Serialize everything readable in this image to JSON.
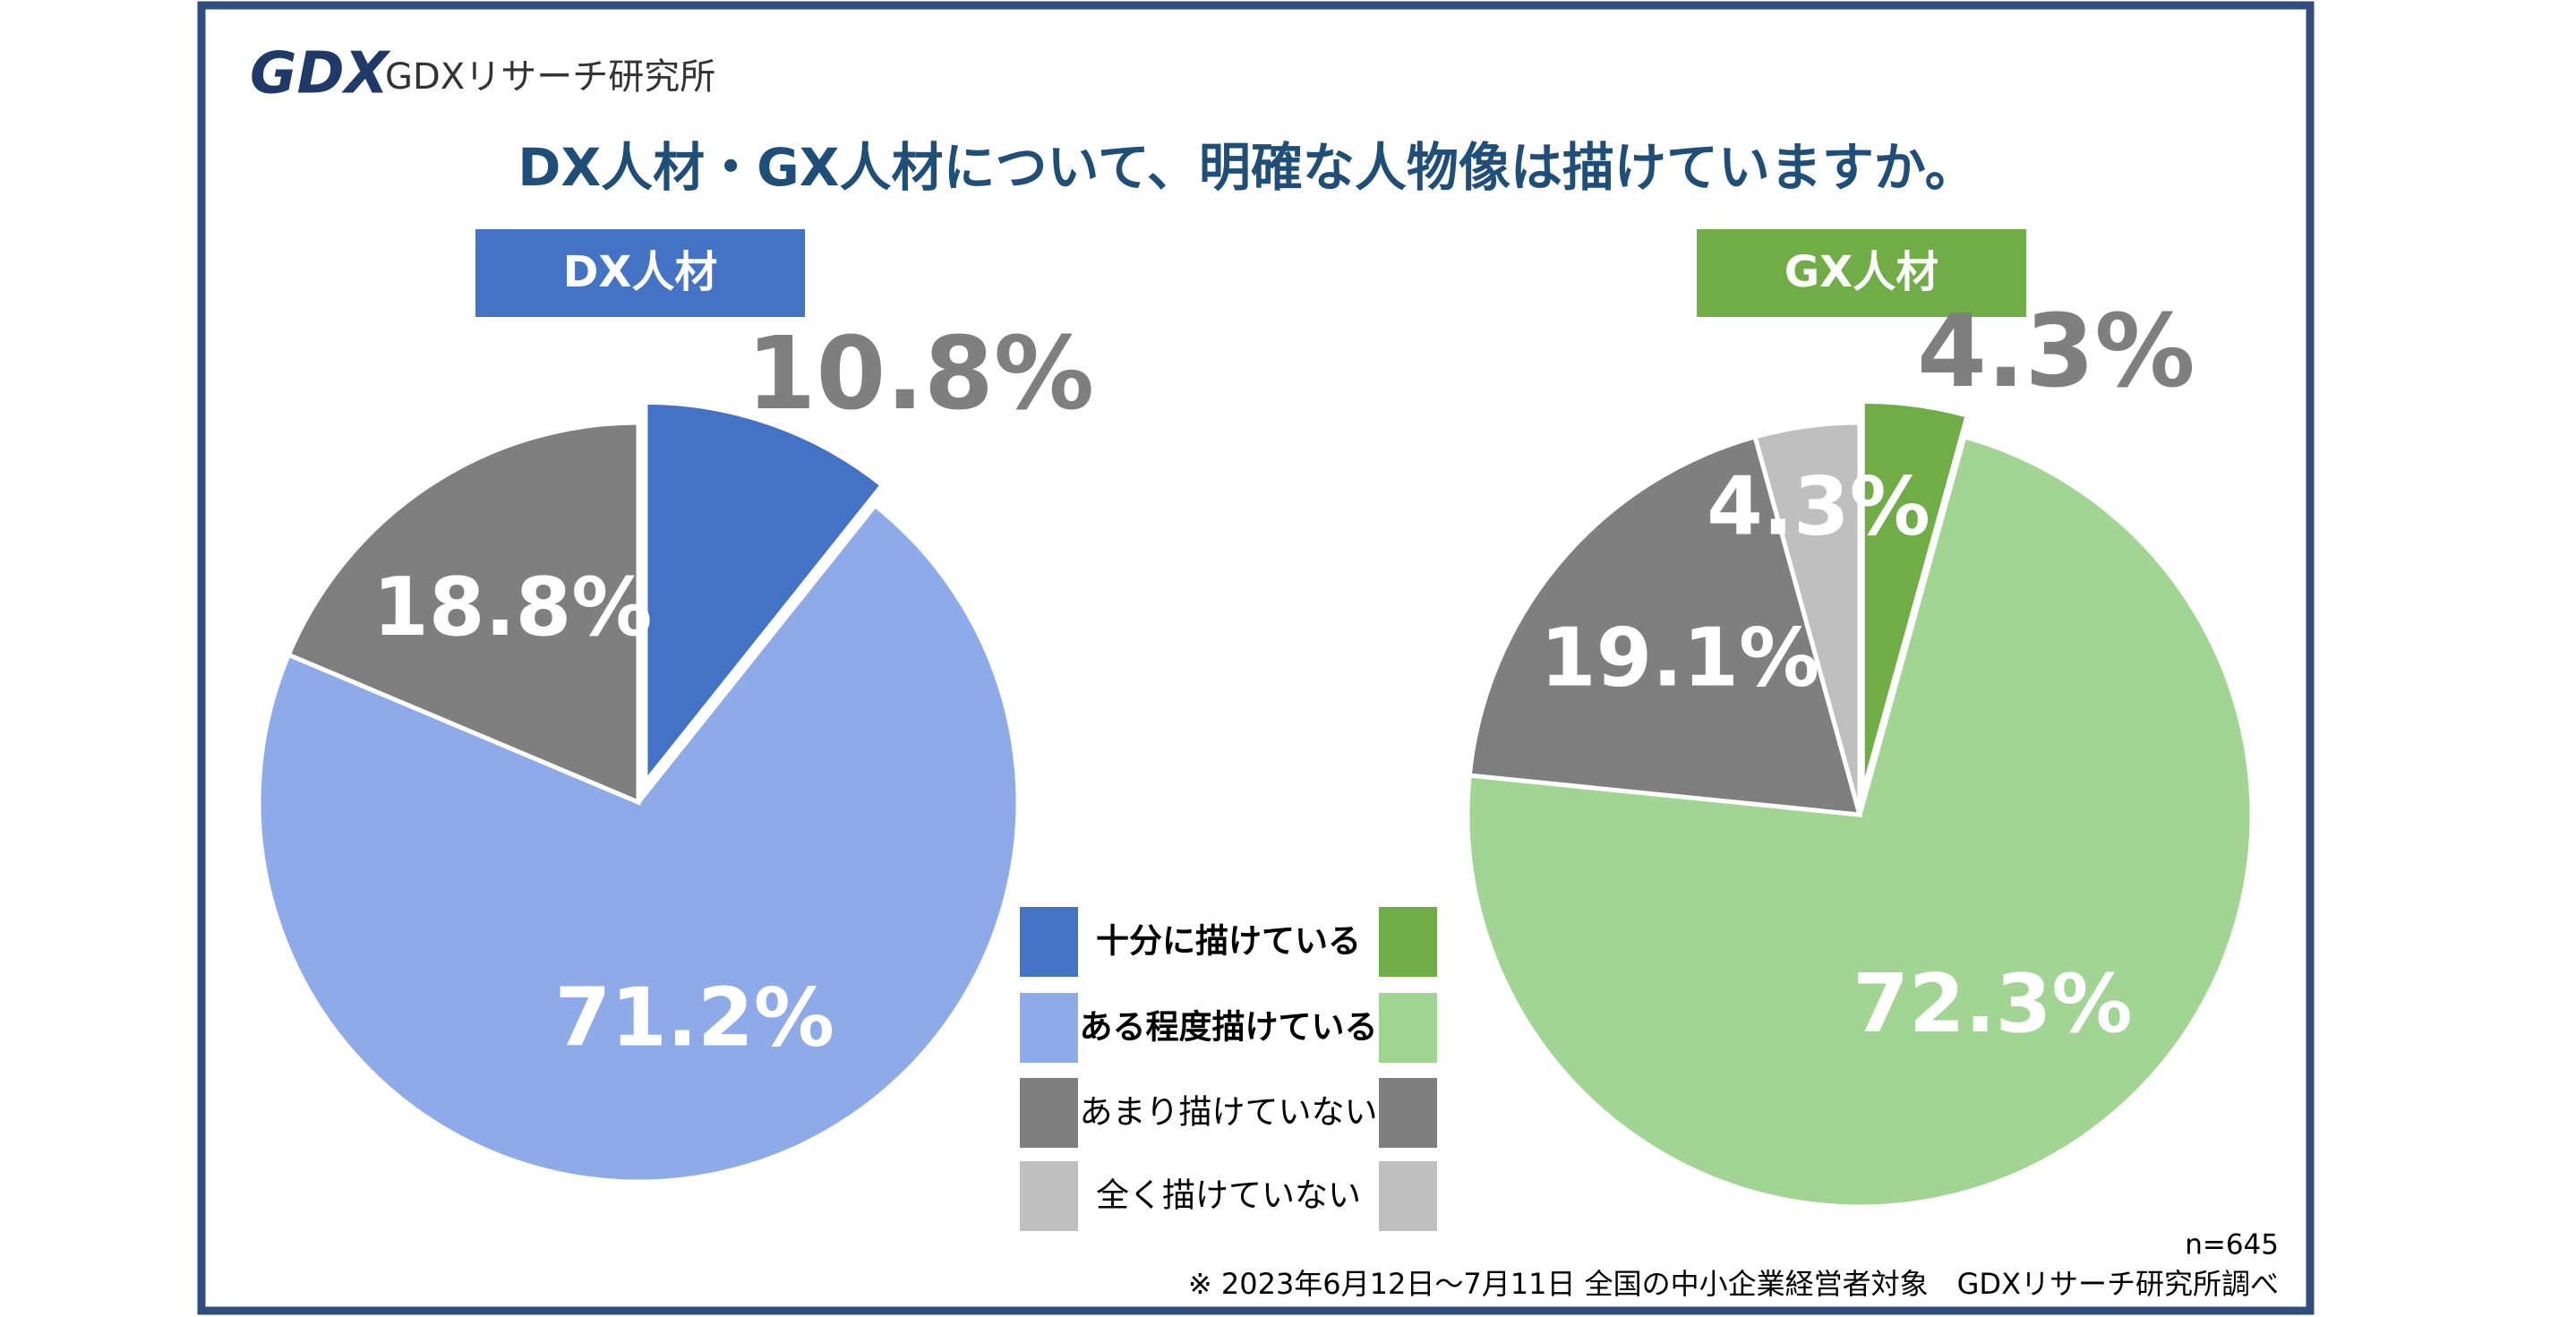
{
  "logo_mark": "GDX",
  "logo_text": "GDXリサーチ研究所",
  "title": "DX人材・GX人材について、明確な人物像は描けていますか。",
  "chart_data": [
    {
      "type": "pie",
      "title": "DX人材",
      "title_color": "#4472c4",
      "categories": [
        "十分に描けている",
        "ある程度描けている",
        "あまり描けていない",
        "全く描けていない"
      ],
      "values": [
        10.8,
        71.2,
        18.8,
        0
      ],
      "value_labels": [
        "10.8%",
        "71.2%",
        "18.8%",
        null
      ],
      "colors": [
        "#4472c4",
        "#8faae8",
        "#7f7f7f",
        "#bfbfbf"
      ],
      "explode": [
        true,
        false,
        false,
        false
      ]
    },
    {
      "type": "pie",
      "title": "GX人材",
      "title_color": "#70ad47",
      "categories": [
        "十分に描けている",
        "ある程度描けている",
        "あまり描けていない",
        "全く描けていない"
      ],
      "values": [
        4.3,
        72.3,
        19.1,
        4.3
      ],
      "value_labels": [
        "4.3%",
        "72.3%",
        "19.1%",
        "4.3%"
      ],
      "colors": [
        "#70ad47",
        "#a2d593",
        "#7f7f7f",
        "#bfbfbf"
      ],
      "explode": [
        true,
        false,
        false,
        false
      ]
    }
  ],
  "sample_size": "n=645",
  "footnote": "※ 2023年6月12日～7月11日 全国の中小企業経営者対象　GDXリサーチ研究所調べ"
}
